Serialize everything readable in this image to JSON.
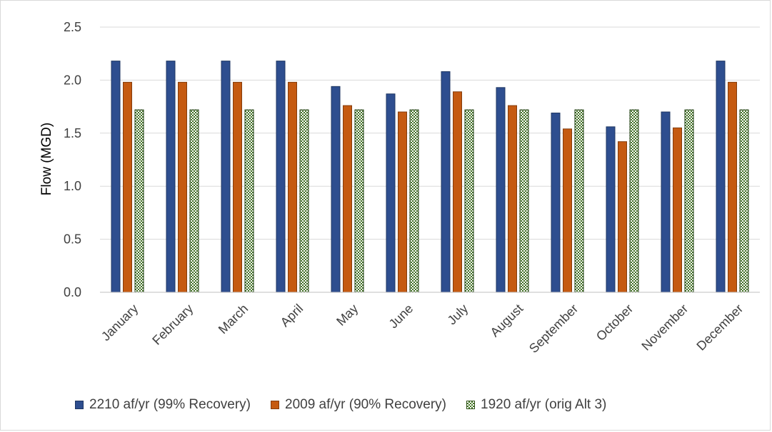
{
  "chart_data": {
    "type": "bar",
    "ylabel": "Flow (MGD)",
    "xlabel": "",
    "ylim": [
      0,
      2.5
    ],
    "yticks": [
      "0.0",
      "0.5",
      "1.0",
      "1.5",
      "2.0",
      "2.5"
    ],
    "grid": true,
    "legend_position": "bottom",
    "categories": [
      "January",
      "February",
      "March",
      "April",
      "May",
      "June",
      "July",
      "August",
      "September",
      "October",
      "November",
      "December"
    ],
    "series": [
      {
        "name": "2210 af/yr (99% Recovery)",
        "color": "#2e4e8f",
        "values": [
          2.18,
          2.18,
          2.18,
          2.18,
          1.94,
          1.87,
          2.08,
          1.93,
          1.69,
          1.56,
          1.7,
          2.18
        ]
      },
      {
        "name": "2009 af/yr (90% Recovery)",
        "color": "#c55a11",
        "values": [
          1.98,
          1.98,
          1.98,
          1.98,
          1.76,
          1.7,
          1.89,
          1.76,
          1.54,
          1.42,
          1.55,
          1.98
        ]
      },
      {
        "name": "1920 af/yr (orig Alt 3)",
        "color": "#4a7a2c",
        "pattern": "checkerboard",
        "values": [
          1.72,
          1.72,
          1.72,
          1.72,
          1.72,
          1.72,
          1.72,
          1.72,
          1.72,
          1.72,
          1.72,
          1.72
        ]
      }
    ]
  }
}
